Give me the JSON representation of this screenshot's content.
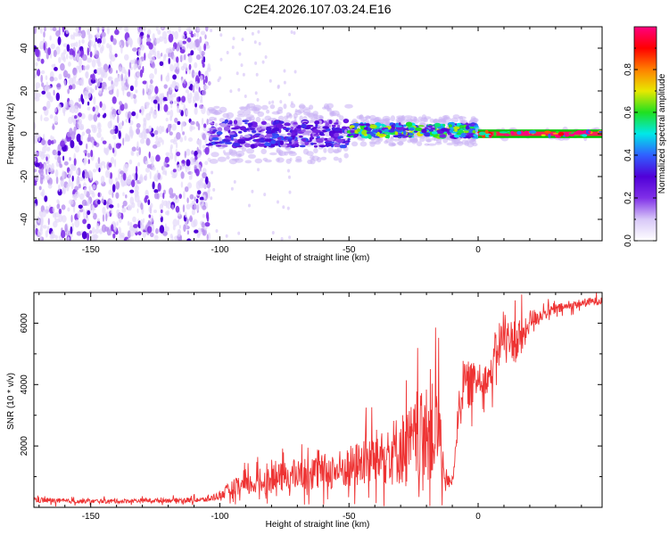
{
  "figure": {
    "title": "C2E4.2026.107.03.24.E16"
  },
  "chart_data": [
    {
      "type": "heatmap",
      "title": "",
      "xlabel": "Height of straight line (km)",
      "ylabel": "Frequency (Hz)",
      "xlim": [
        -172,
        48
      ],
      "ylim": [
        -50,
        50
      ],
      "x_ticks": [
        -150,
        -100,
        -50,
        0
      ],
      "x_tick_labels": [
        "-150",
        "-100",
        "-50",
        "0"
      ],
      "y_ticks": [
        -40,
        -20,
        0,
        20,
        40
      ],
      "y_tick_labels": [
        "-40",
        "-20",
        "0",
        "20",
        "40"
      ],
      "grid": false,
      "colorscale": [
        "#ffffff",
        "#d8c8f8",
        "#8030e8",
        "#5000d8",
        "#3060ff",
        "#00e8e8",
        "#20e020",
        "#e8e800",
        "#ff8000",
        "#ff0000",
        "#ff0080"
      ],
      "colorbar": {
        "label": "Normalized spectral amplitude",
        "range": [
          0,
          1
        ],
        "ticks": [
          0,
          0.2,
          0.4,
          0.6,
          0.8
        ],
        "tick_labels": [
          "0.0",
          "0.2",
          "0.4",
          "0.6",
          "0.8"
        ]
      },
      "regions": [
        {
          "name": "noise",
          "x_range": [
            -172,
            -104
          ],
          "freq_spread": 50,
          "amplitude": 0.1
        },
        {
          "name": "scattered",
          "x_range": [
            -104,
            -70
          ],
          "freq_spread": 50,
          "amplitude": 0.02
        },
        {
          "name": "echo_weak",
          "x_range": [
            -104,
            -50
          ],
          "center_freq": 0,
          "band_halfwidth": 6,
          "amplitude": 0.3
        },
        {
          "name": "echo_mid",
          "x_range": [
            -50,
            0
          ],
          "center_freq": 1.5,
          "band_halfwidth": 3,
          "amplitude": 0.55
        },
        {
          "name": "echo_strong",
          "x_range": [
            0,
            48
          ],
          "center_freq": 0,
          "band_halfwidth": 1,
          "amplitude": 0.9
        }
      ]
    },
    {
      "type": "line",
      "title": "",
      "xlabel": "Height of straight line (km)",
      "ylabel": "SNR (10 * v/v)",
      "xlim": [
        -172,
        48
      ],
      "ylim": [
        0,
        7000
      ],
      "x_ticks": [
        -150,
        -100,
        -50,
        0
      ],
      "x_tick_labels": [
        "-150",
        "-100",
        "-50",
        "0"
      ],
      "y_ticks": [
        2000,
        4000,
        6000
      ],
      "y_tick_labels": [
        "2000",
        "4000",
        "6000"
      ],
      "grid": false,
      "series": [
        {
          "color": "#ee3333",
          "x": [
            -172,
            -160,
            -150,
            -140,
            -130,
            -120,
            -110,
            -105,
            -100,
            -95,
            -90,
            -85,
            -80,
            -75,
            -70,
            -65,
            -60,
            -55,
            -50,
            -45,
            -40,
            -35,
            -30,
            -25,
            -20,
            -15,
            -13,
            -10,
            -7,
            -5,
            -3,
            0,
            3,
            5,
            8,
            10,
            13,
            15,
            18,
            20,
            25,
            30,
            35,
            40,
            48
          ],
          "y": [
            250,
            200,
            200,
            200,
            220,
            230,
            240,
            250,
            400,
            600,
            700,
            800,
            900,
            1000,
            1050,
            1100,
            1150,
            1200,
            1300,
            1450,
            1600,
            1750,
            1900,
            2100,
            2300,
            2600,
            900,
            800,
            3600,
            4000,
            4000,
            4150,
            4200,
            4300,
            5400,
            5500,
            5500,
            5400,
            5600,
            6100,
            6300,
            6450,
            6550,
            6650,
            6750
          ],
          "noise_amplitude": [
            150,
            100,
            100,
            100,
            100,
            100,
            120,
            120,
            200,
            450,
            500,
            550,
            650,
            700,
            700,
            800,
            850,
            900,
            1000,
            1100,
            1300,
            1500,
            1700,
            1900,
            2200,
            2500,
            300,
            300,
            900,
            1100,
            1100,
            700,
            700,
            800,
            1000,
            900,
            900,
            1300,
            700,
            500,
            300,
            250,
            200,
            200,
            200
          ]
        }
      ]
    }
  ]
}
